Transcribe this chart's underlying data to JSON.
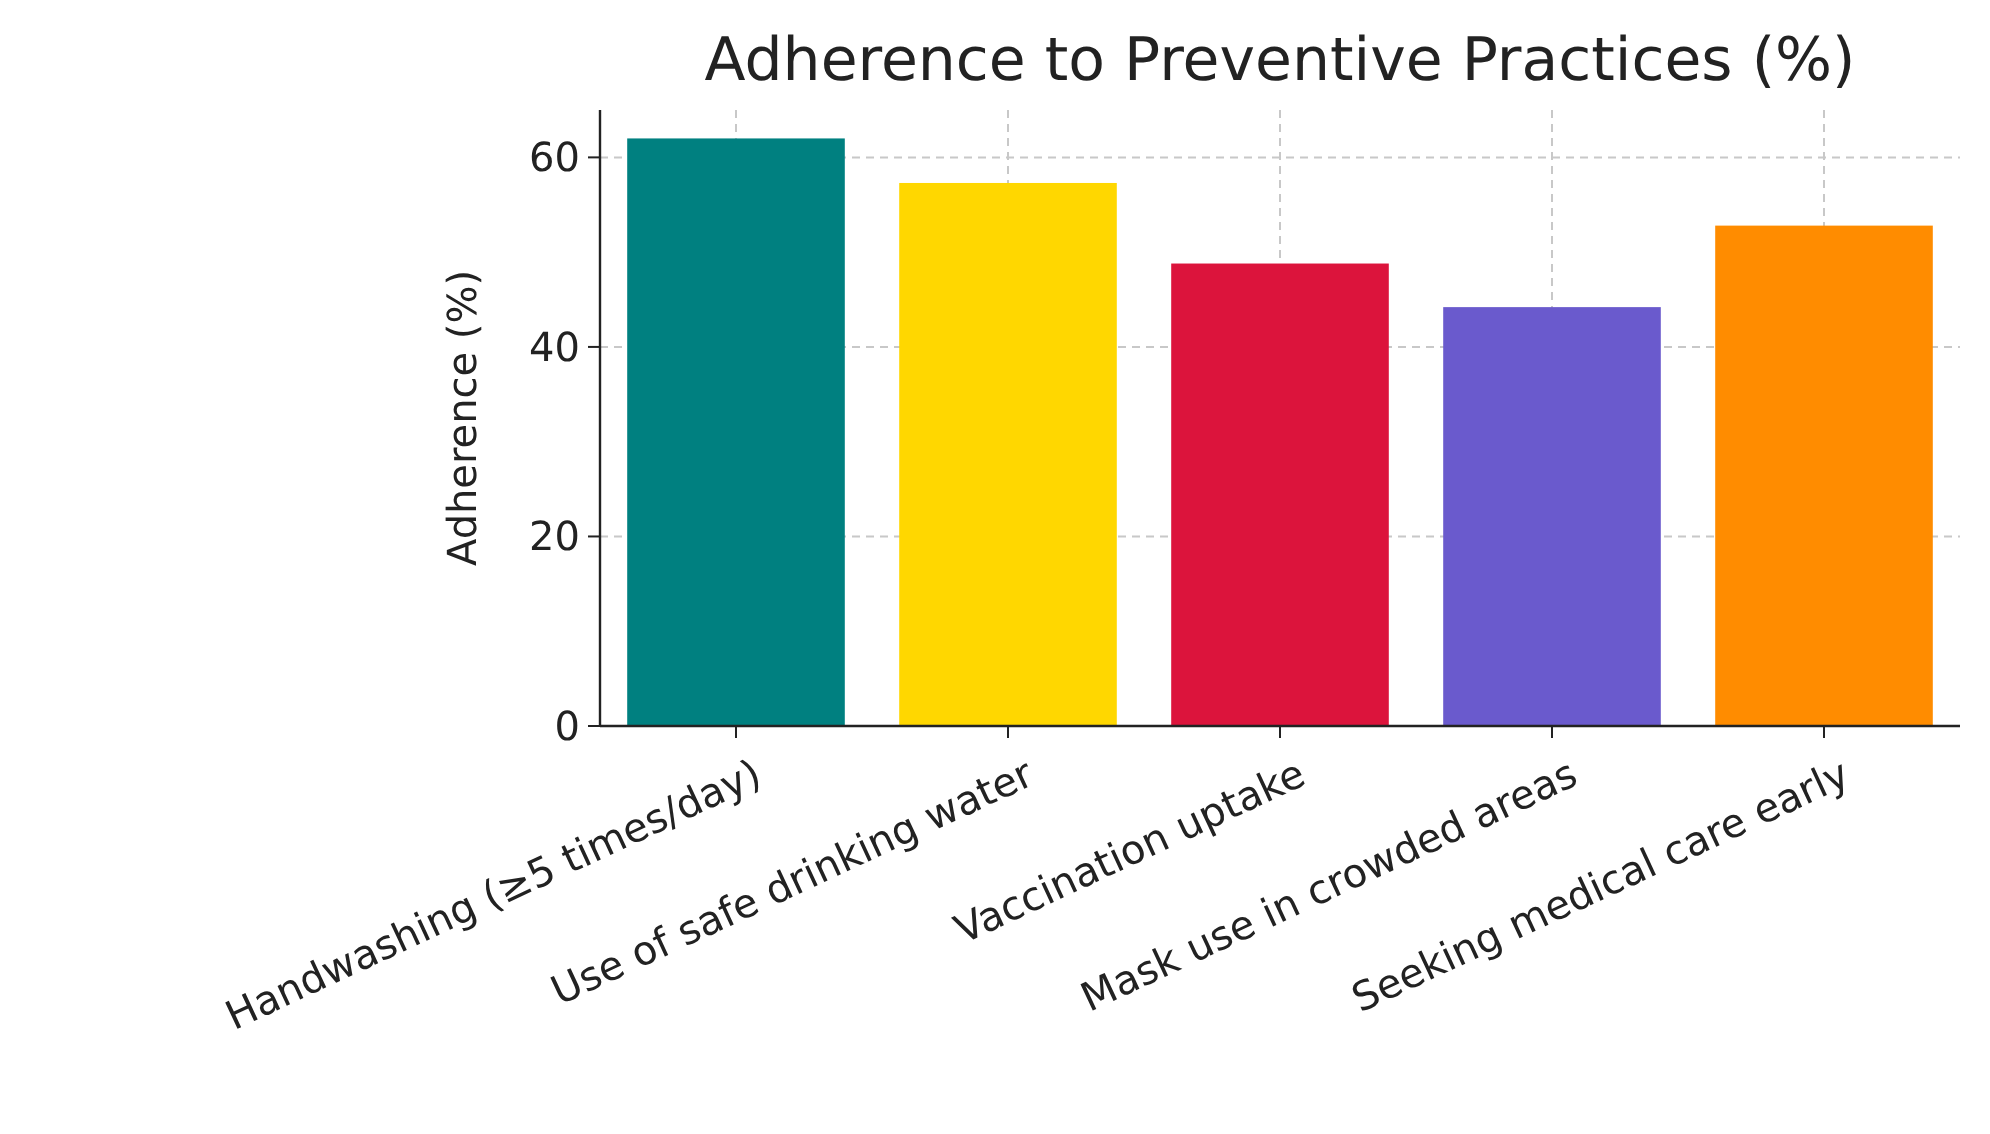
{
  "chart_data": {
    "type": "bar",
    "title": "Adherence to Preventive Practices (%)",
    "ylabel": "Adherence (%)",
    "categories": [
      "Handwashing (≥5 times/day)",
      "Use of safe drinking water",
      "Vaccination uptake",
      "Mask use in crowded areas",
      "Seeking medical care early"
    ],
    "values": [
      62,
      57.3,
      48.8,
      44.2,
      52.8
    ],
    "colors": [
      "#008080",
      "#ffd700",
      "#dc143c",
      "#6a5acd",
      "#ff8c00"
    ],
    "ylim": [
      0,
      65
    ],
    "yticks": [
      0,
      20,
      40,
      60
    ],
    "grid": true
  }
}
